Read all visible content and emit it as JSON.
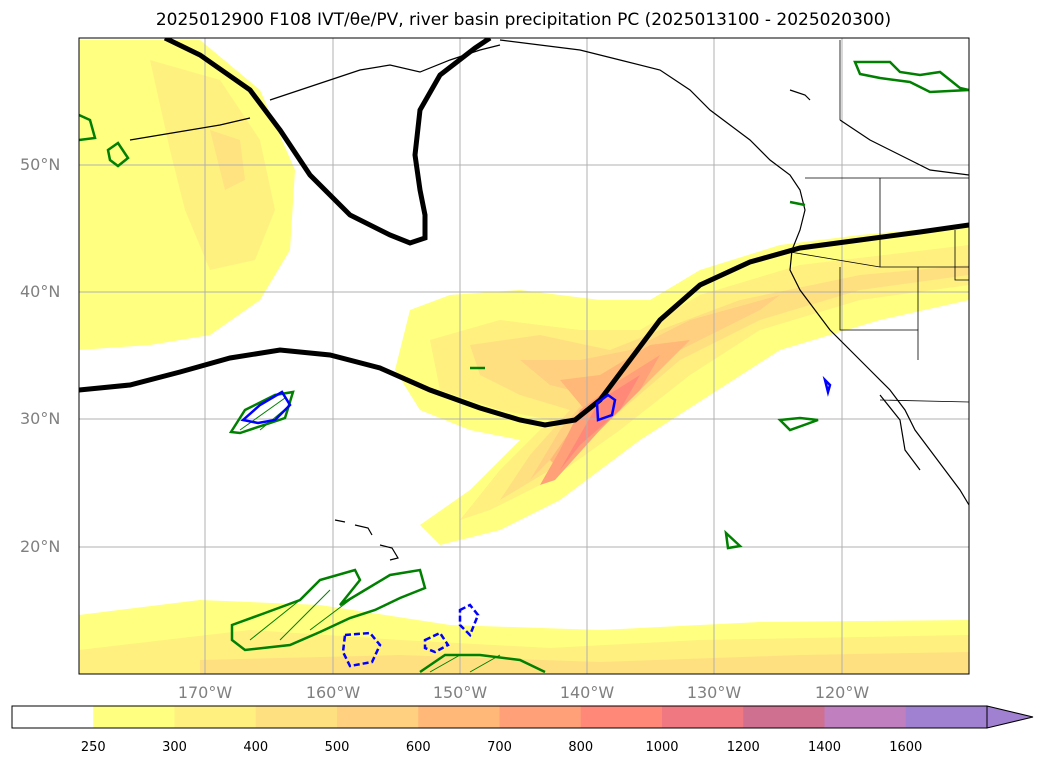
{
  "title_text": "2025012900 F108 IVT/θe/PV, river basin precipitation PC (2025013100 - 2025020300)",
  "lat_labels": [
    "50°N",
    "40°N",
    "30°N",
    "20°N"
  ],
  "lon_labels": [
    "170°W",
    "160°W",
    "150°W",
    "140°W",
    "130°W",
    "120°W"
  ],
  "colorbar": {
    "ticks": [
      "250",
      "300",
      "400",
      "500",
      "600",
      "700",
      "800",
      "1000",
      "1200",
      "1400",
      "1600"
    ],
    "colors": [
      "#ffffff",
      "#ffff80",
      "#fff080",
      "#ffe080",
      "#ffd080",
      "#ffb878",
      "#ffa078",
      "#ff8878",
      "#f07880",
      "#d07090",
      "#c080c0",
      "#a080d0"
    ]
  }
}
